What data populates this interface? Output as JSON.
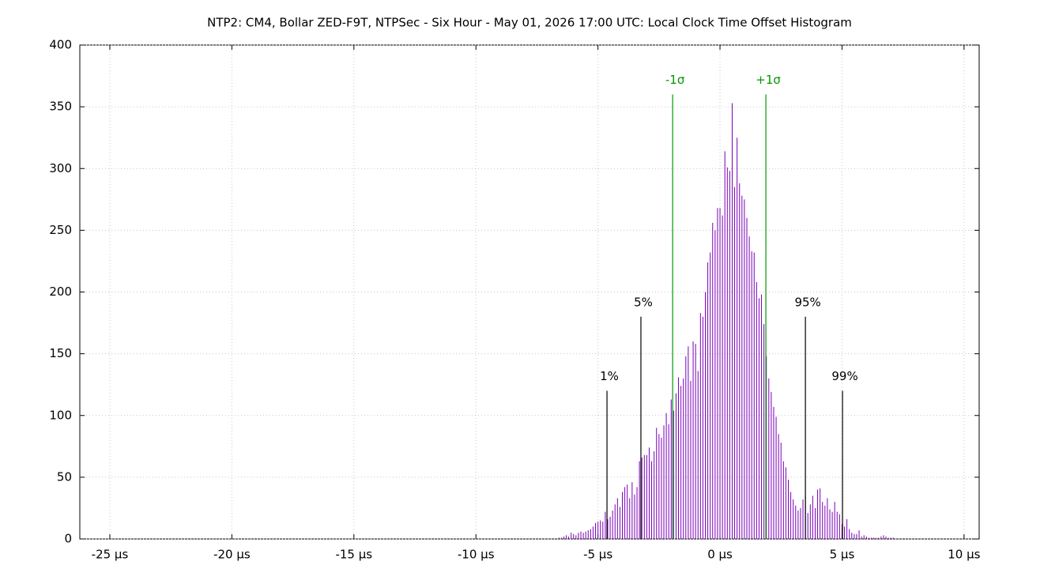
{
  "chart_data": {
    "type": "impulse",
    "title": "NTP2: CM4, Bollar ZED-F9T, NTPSec - Six Hour - May 01, 2026 17:00 UTC: Local Clock Time Offset Histogram",
    "color": "#7a00b8",
    "x": [
      -6.6,
      -6.5,
      -6.4,
      -6.3,
      -6.2,
      -6.1,
      -6.0,
      -5.9,
      -5.8,
      -5.7,
      -5.6,
      -5.5,
      -5.4,
      -5.3,
      -5.2,
      -5.1,
      -5.0,
      -4.9,
      -4.8,
      -4.7,
      -4.6,
      -4.5,
      -4.4,
      -4.3,
      -4.2,
      -4.1,
      -4.0,
      -3.9,
      -3.8,
      -3.7,
      -3.6,
      -3.5,
      -3.4,
      -3.3,
      -3.2,
      -3.1,
      -3.0,
      -2.9,
      -2.8,
      -2.7,
      -2.6,
      -2.5,
      -2.4,
      -2.3,
      -2.2,
      -2.1,
      -2.0,
      -1.9,
      -1.8,
      -1.7,
      -1.6,
      -1.5,
      -1.4,
      -1.3,
      -1.2,
      -1.1,
      -1.0,
      -0.9,
      -0.8,
      -0.7,
      -0.6,
      -0.5,
      -0.4,
      -0.3,
      -0.2,
      -0.1,
      0,
      0.1,
      0.2,
      0.3,
      0.4,
      0.5,
      0.6,
      0.7,
      0.8,
      0.9,
      1.0,
      1.1,
      1.2,
      1.3,
      1.4,
      1.5,
      1.6,
      1.7,
      1.8,
      1.9,
      2.0,
      2.1,
      2.2,
      2.3,
      2.4,
      2.5,
      2.6,
      2.7,
      2.8,
      2.9,
      3.0,
      3.1,
      3.2,
      3.3,
      3.4,
      3.5,
      3.6,
      3.7,
      3.8,
      3.9,
      4.0,
      4.1,
      4.2,
      4.3,
      4.4,
      4.5,
      4.6,
      4.7,
      4.8,
      4.9,
      5.0,
      5.1,
      5.2,
      5.3,
      5.4,
      5.5,
      5.6,
      5.7,
      5.8,
      5.9,
      6.0,
      6.1,
      6.2,
      6.3,
      6.4,
      6.5,
      6.6,
      6.7,
      6.8,
      6.9,
      7.0,
      7.1
    ],
    "values": [
      1,
      1,
      2,
      3,
      2,
      5,
      4,
      3,
      5,
      6,
      5,
      6,
      7,
      8,
      10,
      13,
      14,
      15,
      14,
      22,
      16,
      18,
      23,
      28,
      33,
      26,
      38,
      42,
      44,
      33,
      46,
      36,
      42,
      63,
      66,
      68,
      68,
      74,
      63,
      71,
      90,
      85,
      82,
      92,
      102,
      93,
      113,
      104,
      118,
      131,
      124,
      130,
      148,
      156,
      128,
      160,
      158,
      136,
      183,
      180,
      200,
      224,
      232,
      256,
      250,
      268,
      268,
      262,
      314,
      301,
      298,
      353,
      285,
      325,
      288,
      278,
      275,
      260,
      245,
      233,
      232,
      208,
      195,
      198,
      174,
      148,
      130,
      119,
      107,
      99,
      85,
      78,
      63,
      58,
      48,
      38,
      32,
      27,
      23,
      25,
      32,
      35,
      21,
      28,
      35,
      25,
      40,
      41,
      30,
      27,
      33,
      24,
      22,
      30,
      22,
      20,
      12,
      10,
      16,
      8,
      5,
      4,
      4,
      7,
      2,
      3,
      2,
      1,
      1,
      1,
      1,
      1,
      2,
      3,
      2,
      1,
      1,
      1
    ],
    "markers": [
      {
        "label": "1%",
        "x": -4.63,
        "y": 120,
        "color": "#000000"
      },
      {
        "label": "5%",
        "x": -3.24,
        "y": 180,
        "color": "#000000"
      },
      {
        "label": "-1σ",
        "x": -1.94,
        "y": 360,
        "color": "#009900"
      },
      {
        "label": "+1σ",
        "x": 1.88,
        "y": 360,
        "color": "#009900"
      },
      {
        "label": "95%",
        "x": 3.5,
        "y": 180,
        "color": "#000000"
      },
      {
        "label": "99%",
        "x": 5.02,
        "y": 120,
        "color": "#000000"
      }
    ],
    "xlim": [
      -26.23,
      10.62
    ],
    "xticks": [
      {
        "value": -25,
        "label": "-25 µs"
      },
      {
        "value": -20,
        "label": "-20 µs"
      },
      {
        "value": -15,
        "label": "-15 µs"
      },
      {
        "value": -10,
        "label": "-10 µs"
      },
      {
        "value": -5,
        "label": "-5 µs"
      },
      {
        "value": 0,
        "label": "0 µs"
      },
      {
        "value": 5,
        "label": "5 µs"
      },
      {
        "value": 10,
        "label": "10 µs"
      }
    ],
    "ylim": [
      0,
      400
    ],
    "yticks": [
      0,
      50,
      100,
      150,
      200,
      250,
      300,
      350,
      400
    ],
    "grid": true
  }
}
